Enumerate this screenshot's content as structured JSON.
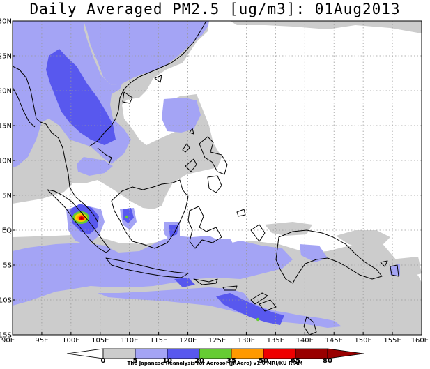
{
  "title": "Daily Averaged PM2.5 [ug/m3]: 01Aug2013",
  "lat_labels": [
    "30N",
    "25N",
    "20N",
    "15N",
    "10N",
    "5N",
    "EQ",
    "5S",
    "10S",
    "15S"
  ],
  "lon_labels": [
    "90E",
    "95E",
    "100E",
    "105E",
    "110E",
    "115E",
    "120E",
    "125E",
    "130E",
    "135E",
    "140E",
    "145E",
    "150E",
    "155E",
    "160E"
  ],
  "colorbar": {
    "labels": [
      "0",
      "5",
      "10",
      "20",
      "35",
      "50",
      "65",
      "80"
    ],
    "colors": [
      "#ffffff",
      "#cccccc",
      "#a4a4f5",
      "#5858ee",
      "#66cc33",
      "#ff9900",
      "#ee0000",
      "#990000"
    ]
  },
  "credit": "The Japanese Reanalysis for Aerosol (JRAero) v1.0 MRI/KU RIAM"
}
